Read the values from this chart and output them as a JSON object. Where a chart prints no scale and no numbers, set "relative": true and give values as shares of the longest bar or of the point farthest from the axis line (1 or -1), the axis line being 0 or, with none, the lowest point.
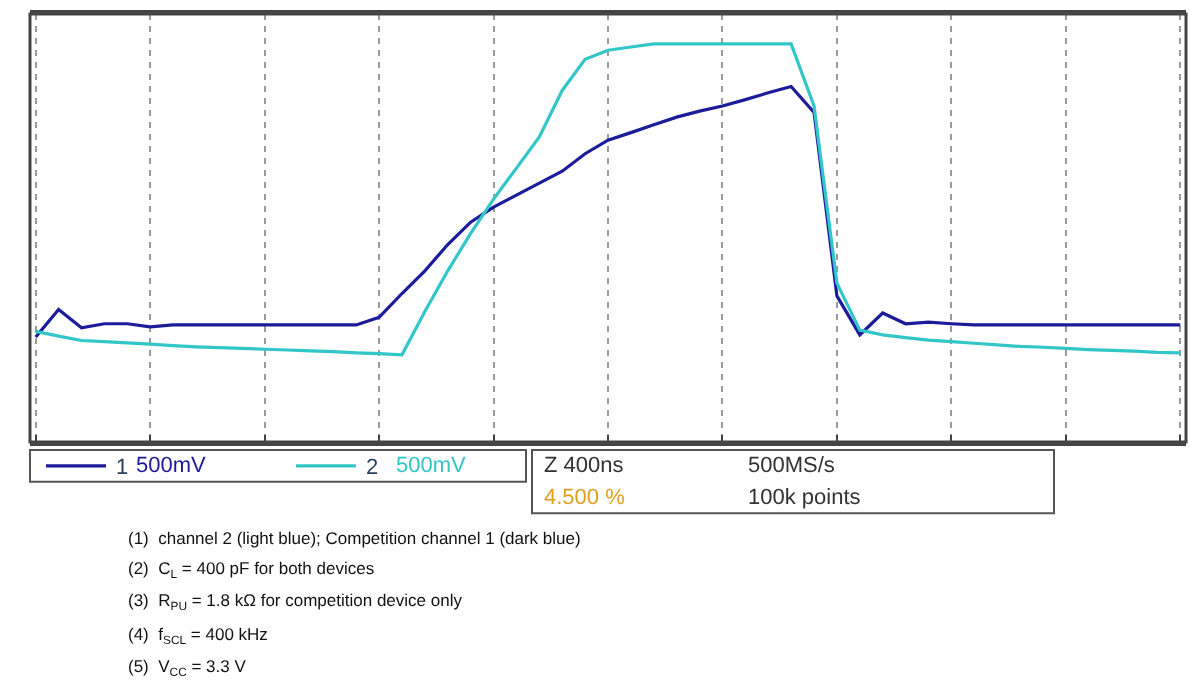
{
  "chart_data": {
    "type": "line",
    "relative": true,
    "categories": [
      null,
      null,
      null,
      null,
      null,
      null,
      null,
      null,
      null,
      null,
      null,
      null,
      null,
      null,
      null,
      null,
      null,
      null,
      null,
      null,
      null,
      null,
      null,
      null,
      null,
      null,
      null,
      null,
      null,
      null,
      null,
      null,
      null,
      null,
      null,
      null,
      null,
      null,
      null,
      null,
      null,
      null,
      null,
      null,
      null,
      null,
      null,
      null,
      null,
      null,
      null
    ],
    "grid": "x",
    "marker": "none",
    "line_style": "solid",
    "legend": "bottom",
    "series": [
      {
        "name": "1",
        "color": "#1c1c9a",
        "values": [
          0.264,
          0.333,
          0.287,
          0.297,
          0.297,
          0.289,
          0.294,
          0.294,
          0.294,
          0.294,
          0.294,
          0.294,
          0.294,
          0.294,
          0.294,
          0.313,
          0.373,
          0.43,
          0.496,
          0.552,
          0.59,
          0.62,
          0.65,
          0.68,
          0.724,
          0.758,
          0.777,
          0.797,
          0.816,
          0.831,
          0.844,
          0.86,
          0.877,
          0.893,
          0.828,
          0.367,
          0.269,
          0.324,
          0.297,
          0.301,
          0.297,
          0.294,
          0.294,
          0.294,
          0.294,
          0.294,
          0.294,
          0.294,
          0.294,
          0.294,
          0.294
        ]
      },
      {
        "name": "2",
        "color": "#33c6c8",
        "values": [
          0.278,
          0.266,
          0.255,
          0.252,
          0.249,
          0.246,
          0.242,
          0.239,
          0.237,
          0.235,
          0.233,
          0.231,
          0.229,
          0.227,
          0.224,
          0.222,
          0.219,
          0.328,
          0.43,
          0.524,
          0.61,
          0.688,
          0.766,
          0.883,
          0.961,
          0.984,
          0.992,
          1,
          1,
          1,
          1,
          1,
          1,
          1,
          0.844,
          0.399,
          0.281,
          0.269,
          0.262,
          0.256,
          0.252,
          0.248,
          0.244,
          0.24,
          0.238,
          0.235,
          0.232,
          0.23,
          0.228,
          0.225,
          0.224
        ]
      }
    ],
    "annotations": [
      "500mV",
      "500mV",
      "Z 400ns",
      "4.500 %",
      "500MS/s",
      "100k points",
      "(1)  channel 2 (light blue); Competition channel 1 (dark blue)",
      "(2)  C$_{L}$ = 400 pF for both devices",
      "(3)  R$_{PU}$ = 1.8 kΩ for competition device only",
      "(4)  f$_{SCL}$ = 400 kHz",
      "(5)  V$_{CC}$ = 3.3 V"
    ]
  }
}
